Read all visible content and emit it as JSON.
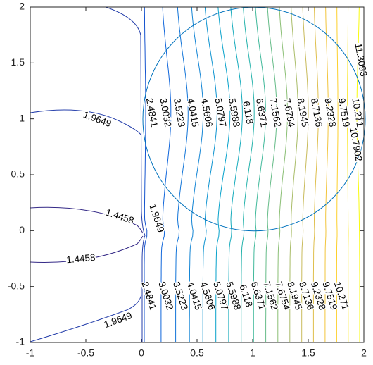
{
  "chart_data": {
    "type": "contour",
    "levels": [
      1.4458,
      1.9649,
      2.4841,
      3.0032,
      3.5223,
      4.0415,
      4.5606,
      5.0797,
      5.5988,
      6.118,
      6.6371,
      7.1562,
      7.6754,
      8.1945,
      8.7136,
      9.2328,
      9.7519,
      10.271,
      10.7902,
      11.3093
    ],
    "colormap": "parula",
    "xlim": [
      -1,
      2
    ],
    "ylim": [
      -1,
      2
    ],
    "xticks": [
      -1,
      -0.5,
      0,
      0.5,
      1,
      1.5,
      2
    ],
    "yticks": [
      -1,
      -0.5,
      0,
      0.5,
      1,
      1.5,
      2
    ]
  }
}
